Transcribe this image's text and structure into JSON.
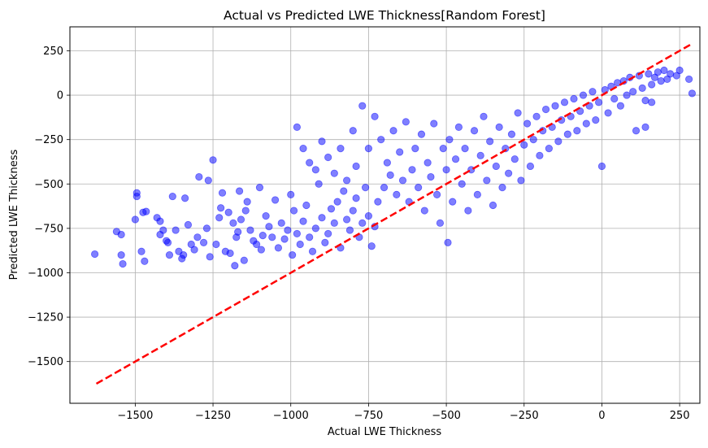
{
  "chart_data": {
    "type": "scatter",
    "title": "Actual vs Predicted LWE Thickness[Random Forest]",
    "xlabel": "Actual LWE Thickness",
    "ylabel": "Predicted LWE Thickness",
    "xlim": [
      -1710,
      315
    ],
    "ylim": [
      -1735,
      385
    ],
    "xticks": [
      -1500,
      -1250,
      -1000,
      -750,
      -500,
      -250,
      0,
      250
    ],
    "yticks": [
      -1500,
      -1250,
      -1000,
      -750,
      -500,
      -250,
      0,
      250
    ],
    "tick_labels": [
      "−1500",
      "−1250",
      "−1000",
      "−750",
      "−500",
      "−250",
      "0",
      "250"
    ],
    "grid": true,
    "point_color": "#0000ff",
    "point_alpha": 0.5,
    "line_color": "#ff0000",
    "reference_line": {
      "style": "dashed",
      "from": [
        -1625,
        -1625
      ],
      "to": [
        290,
        290
      ]
    },
    "series": [
      {
        "kind": "scatter",
        "points": [
          [
            -1630,
            -895
          ],
          [
            -1560,
            -768
          ],
          [
            -1545,
            -900
          ],
          [
            -1540,
            -950
          ],
          [
            -1545,
            -785
          ],
          [
            -1500,
            -700
          ],
          [
            -1495,
            -570
          ],
          [
            -1495,
            -550
          ],
          [
            -1480,
            -880
          ],
          [
            -1475,
            -660
          ],
          [
            -1470,
            -935
          ],
          [
            -1465,
            -655
          ],
          [
            -1430,
            -690
          ],
          [
            -1420,
            -710
          ],
          [
            -1420,
            -785
          ],
          [
            -1410,
            -760
          ],
          [
            -1400,
            -820
          ],
          [
            -1395,
            -830
          ],
          [
            -1390,
            -900
          ],
          [
            -1380,
            -570
          ],
          [
            -1370,
            -760
          ],
          [
            -1360,
            -880
          ],
          [
            -1350,
            -920
          ],
          [
            -1345,
            -900
          ],
          [
            -1340,
            -580
          ],
          [
            -1330,
            -730
          ],
          [
            -1320,
            -840
          ],
          [
            -1310,
            -870
          ],
          [
            -1300,
            -800
          ],
          [
            -1295,
            -460
          ],
          [
            -1280,
            -830
          ],
          [
            -1270,
            -750
          ],
          [
            -1265,
            -480
          ],
          [
            -1260,
            -910
          ],
          [
            -1250,
            -365
          ],
          [
            -1240,
            -840
          ],
          [
            -1230,
            -690
          ],
          [
            -1225,
            -635
          ],
          [
            -1220,
            -550
          ],
          [
            -1210,
            -880
          ],
          [
            -1200,
            -660
          ],
          [
            -1195,
            -890
          ],
          [
            -1185,
            -720
          ],
          [
            -1180,
            -960
          ],
          [
            -1175,
            -800
          ],
          [
            -1170,
            -770
          ],
          [
            -1165,
            -540
          ],
          [
            -1160,
            -700
          ],
          [
            -1150,
            -930
          ],
          [
            -1145,
            -650
          ],
          [
            -1140,
            -600
          ],
          [
            -1130,
            -760
          ],
          [
            -1120,
            -820
          ],
          [
            -1110,
            -840
          ],
          [
            -1100,
            -520
          ],
          [
            -1095,
            -870
          ],
          [
            -1090,
            -790
          ],
          [
            -1080,
            -680
          ],
          [
            -1070,
            -740
          ],
          [
            -1060,
            -800
          ],
          [
            -1050,
            -590
          ],
          [
            -1040,
            -860
          ],
          [
            -1030,
            -720
          ],
          [
            -1020,
            -810
          ],
          [
            -1010,
            -760
          ],
          [
            -1000,
            -560
          ],
          [
            -995,
            -900
          ],
          [
            -990,
            -650
          ],
          [
            -980,
            -780
          ],
          [
            -970,
            -840
          ],
          [
            -960,
            -710
          ],
          [
            -950,
            -620
          ],
          [
            -940,
            -800
          ],
          [
            -930,
            -880
          ],
          [
            -920,
            -750
          ],
          [
            -910,
            -500
          ],
          [
            -900,
            -690
          ],
          [
            -890,
            -830
          ],
          [
            -880,
            -780
          ],
          [
            -870,
            -640
          ],
          [
            -860,
            -720
          ],
          [
            -850,
            -600
          ],
          [
            -840,
            -860
          ],
          [
            -830,
            -540
          ],
          [
            -820,
            -700
          ],
          [
            -810,
            -760
          ],
          [
            -800,
            -650
          ],
          [
            -790,
            -580
          ],
          [
            -780,
            -800
          ],
          [
            -770,
            -720
          ],
          [
            -760,
            -520
          ],
          [
            -750,
            -680
          ],
          [
            -740,
            -850
          ],
          [
            -730,
            -740
          ],
          [
            -720,
            -600
          ],
          [
            -980,
            -180
          ],
          [
            -960,
            -300
          ],
          [
            -940,
            -380
          ],
          [
            -920,
            -420
          ],
          [
            -900,
            -260
          ],
          [
            -880,
            -350
          ],
          [
            -860,
            -440
          ],
          [
            -840,
            -300
          ],
          [
            -820,
            -480
          ],
          [
            -800,
            -200
          ],
          [
            -790,
            -400
          ],
          [
            -770,
            -60
          ],
          [
            -750,
            -300
          ],
          [
            -730,
            -120
          ],
          [
            -710,
            -250
          ],
          [
            -700,
            -520
          ],
          [
            -690,
            -380
          ],
          [
            -680,
            -450
          ],
          [
            -670,
            -200
          ],
          [
            -660,
            -560
          ],
          [
            -650,
            -320
          ],
          [
            -640,
            -480
          ],
          [
            -630,
            -150
          ],
          [
            -620,
            -600
          ],
          [
            -610,
            -420
          ],
          [
            -600,
            -300
          ],
          [
            -590,
            -520
          ],
          [
            -580,
            -220
          ],
          [
            -570,
            -650
          ],
          [
            -560,
            -380
          ],
          [
            -550,
            -460
          ],
          [
            -540,
            -160
          ],
          [
            -530,
            -560
          ],
          [
            -520,
            -720
          ],
          [
            -510,
            -300
          ],
          [
            -500,
            -420
          ],
          [
            -495,
            -830
          ],
          [
            -490,
            -250
          ],
          [
            -480,
            -600
          ],
          [
            -470,
            -360
          ],
          [
            -460,
            -180
          ],
          [
            -450,
            -500
          ],
          [
            -440,
            -300
          ],
          [
            -430,
            -650
          ],
          [
            -420,
            -420
          ],
          [
            -410,
            -200
          ],
          [
            -400,
            -560
          ],
          [
            -390,
            -340
          ],
          [
            -380,
            -120
          ],
          [
            -370,
            -480
          ],
          [
            -360,
            -260
          ],
          [
            -350,
            -620
          ],
          [
            -340,
            -400
          ],
          [
            -330,
            -180
          ],
          [
            -320,
            -520
          ],
          [
            -310,
            -300
          ],
          [
            -300,
            -440
          ],
          [
            -290,
            -220
          ],
          [
            -280,
            -360
          ],
          [
            -270,
            -100
          ],
          [
            -260,
            -480
          ],
          [
            -250,
            -280
          ],
          [
            -240,
            -160
          ],
          [
            -230,
            -400
          ],
          [
            -220,
            -250
          ],
          [
            -210,
            -120
          ],
          [
            -200,
            -340
          ],
          [
            -190,
            -200
          ],
          [
            -180,
            -80
          ],
          [
            -170,
            -300
          ],
          [
            -160,
            -180
          ],
          [
            -150,
            -60
          ],
          [
            -140,
            -260
          ],
          [
            -130,
            -140
          ],
          [
            -120,
            -40
          ],
          [
            -110,
            -220
          ],
          [
            -100,
            -120
          ],
          [
            -90,
            -20
          ],
          [
            -80,
            -200
          ],
          [
            -70,
            -90
          ],
          [
            -60,
            0
          ],
          [
            -50,
            -160
          ],
          [
            -40,
            -60
          ],
          [
            -30,
            20
          ],
          [
            -20,
            -140
          ],
          [
            -10,
            -40
          ],
          [
            0,
            -400
          ],
          [
            10,
            30
          ],
          [
            20,
            -100
          ],
          [
            30,
            50
          ],
          [
            40,
            -20
          ],
          [
            50,
            70
          ],
          [
            60,
            -60
          ],
          [
            70,
            80
          ],
          [
            80,
            0
          ],
          [
            90,
            100
          ],
          [
            100,
            20
          ],
          [
            110,
            -200
          ],
          [
            120,
            110
          ],
          [
            130,
            40
          ],
          [
            140,
            -30
          ],
          [
            150,
            120
          ],
          [
            160,
            60
          ],
          [
            170,
            100
          ],
          [
            180,
            130
          ],
          [
            190,
            80
          ],
          [
            200,
            140
          ],
          [
            210,
            90
          ],
          [
            220,
            120
          ],
          [
            240,
            110
          ],
          [
            250,
            140
          ],
          [
            280,
            90
          ],
          [
            290,
            10
          ],
          [
            140,
            -180
          ],
          [
            160,
            -40
          ]
        ]
      }
    ]
  }
}
